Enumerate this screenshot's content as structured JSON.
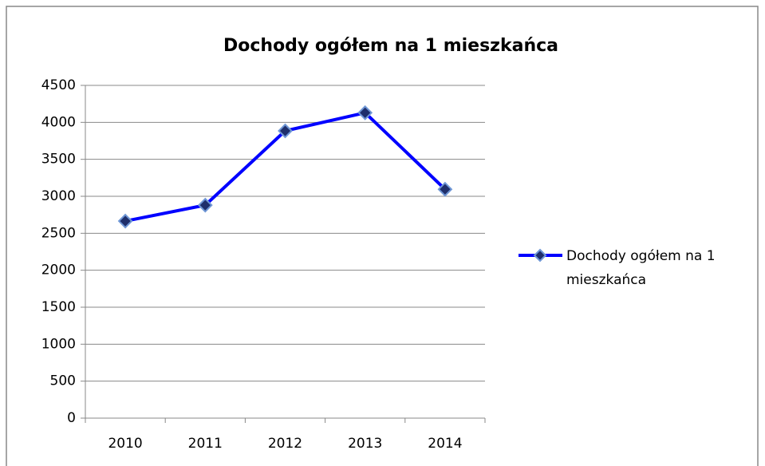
{
  "chart_data": {
    "type": "line",
    "title": "Dochody ogółem na 1 mieszkańca",
    "categories": [
      "2010",
      "2011",
      "2012",
      "2013",
      "2014"
    ],
    "series": [
      {
        "name": "Dochody ogółem na 1 mieszkańca",
        "color": "#0000ff",
        "values": [
          2665,
          2880,
          3885,
          4130,
          3095
        ]
      }
    ],
    "ylim": [
      0,
      4500
    ],
    "yticks": [
      0,
      500,
      1000,
      1500,
      2000,
      2500,
      3000,
      3500,
      4000,
      4500
    ],
    "grid": true,
    "legend": "right"
  }
}
